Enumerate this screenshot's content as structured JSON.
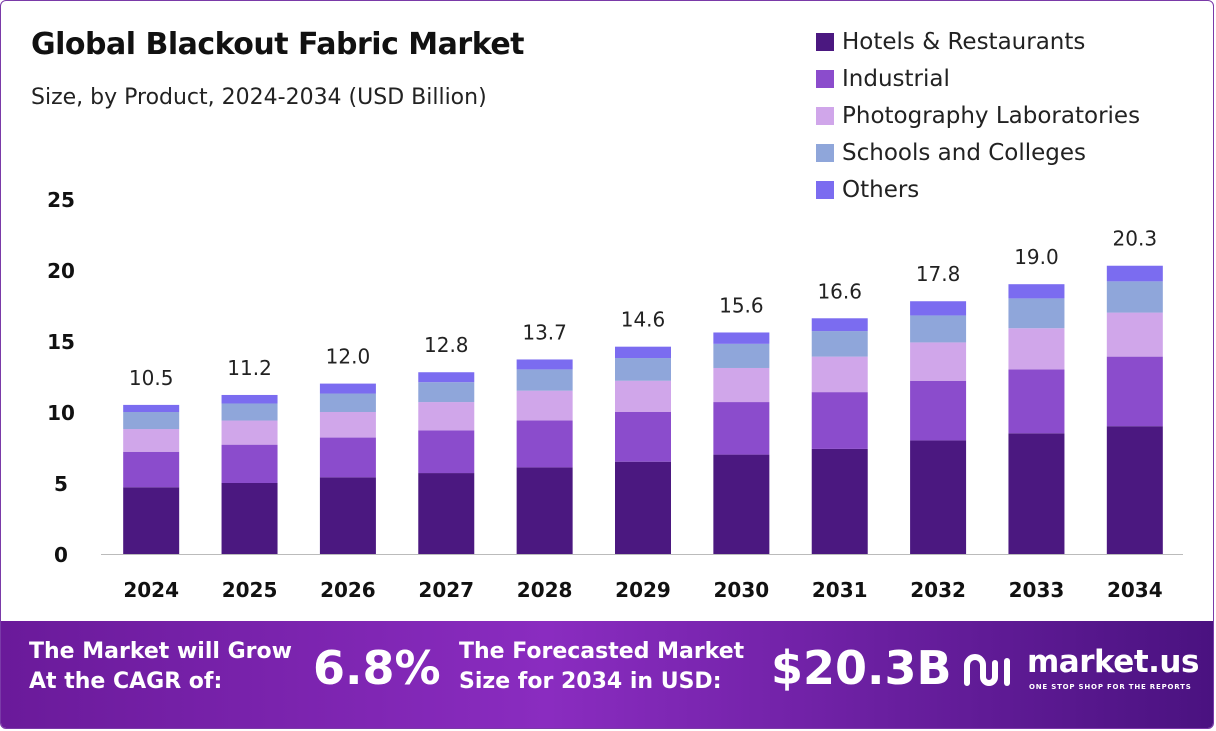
{
  "header": {
    "title": "Global Blackout Fabric Market",
    "subtitle": "Size, by Product, 2024-2034 (USD Billion)"
  },
  "chart_data": {
    "type": "bar",
    "stacked": true,
    "categories": [
      "2024",
      "2025",
      "2026",
      "2027",
      "2028",
      "2029",
      "2030",
      "2031",
      "2032",
      "2033",
      "2034"
    ],
    "totals": [
      "10.5",
      "11.2",
      "12.0",
      "12.8",
      "13.7",
      "14.6",
      "15.6",
      "16.6",
      "17.8",
      "19.0",
      "20.3"
    ],
    "series": [
      {
        "name": "Hotels & Restaurants",
        "color": "#4b1880",
        "values": [
          4.7,
          5.0,
          5.4,
          5.7,
          6.1,
          6.5,
          7.0,
          7.4,
          8.0,
          8.5,
          9.0
        ]
      },
      {
        "name": "Industrial",
        "color": "#8b4ccc",
        "values": [
          2.5,
          2.7,
          2.8,
          3.0,
          3.3,
          3.5,
          3.7,
          4.0,
          4.2,
          4.5,
          4.9
        ]
      },
      {
        "name": "Photography Laboratories",
        "color": "#d0a6ea",
        "values": [
          1.6,
          1.7,
          1.8,
          2.0,
          2.1,
          2.2,
          2.4,
          2.5,
          2.7,
          2.9,
          3.1
        ]
      },
      {
        "name": "Schools and Colleges",
        "color": "#8fa6da",
        "values": [
          1.2,
          1.2,
          1.3,
          1.4,
          1.5,
          1.6,
          1.7,
          1.8,
          1.9,
          2.1,
          2.2
        ]
      },
      {
        "name": "Others",
        "color": "#7b6cf0",
        "values": [
          0.5,
          0.6,
          0.7,
          0.7,
          0.7,
          0.8,
          0.8,
          0.9,
          1.0,
          1.0,
          1.1
        ]
      }
    ],
    "yticks": [
      "0",
      "5",
      "10",
      "15",
      "20",
      "25"
    ],
    "ylim": [
      0,
      25
    ],
    "grid": false,
    "legend_position": "top-right"
  },
  "banner": {
    "cagr_label_line1": "The Market will Grow",
    "cagr_label_line2": "At the CAGR of:",
    "cagr_value": "6.8%",
    "forecast_label_line1": "The Forecasted Market",
    "forecast_label_line2": "Size for 2034 in USD:",
    "forecast_value": "$20.3B",
    "brand_name": "market.us",
    "brand_tagline": "ONE STOP SHOP FOR THE REPORTS"
  }
}
